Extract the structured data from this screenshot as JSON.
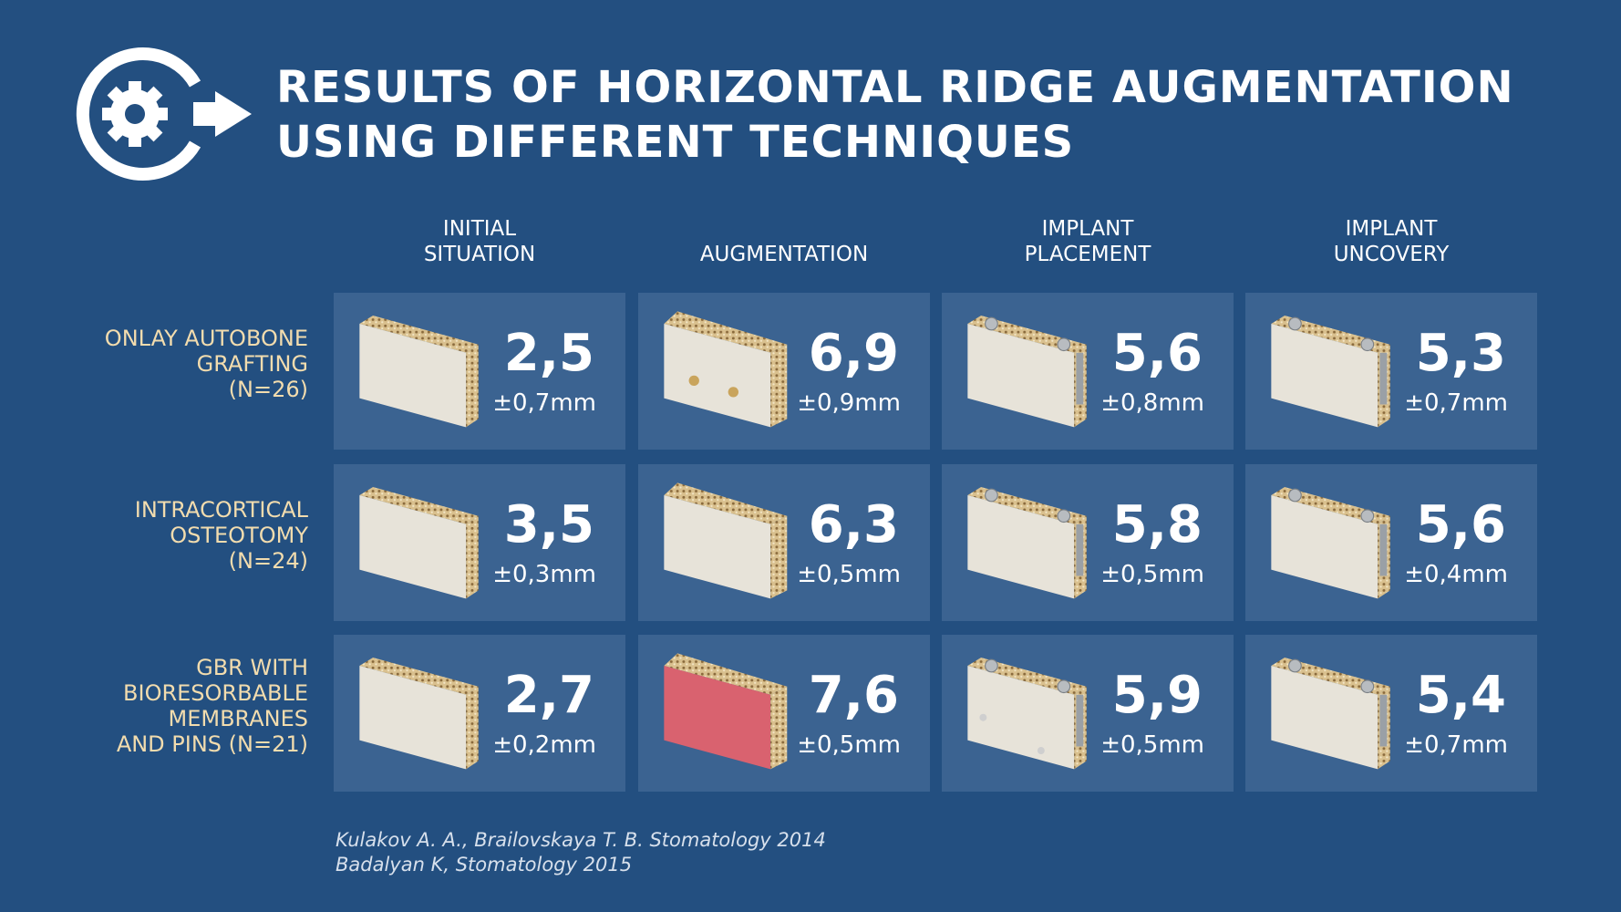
{
  "header": {
    "title": [
      "RESULTS OF HORIZONTAL RIDGE AUGMENTATION",
      "USING DIFFERENT TECHNIQUES"
    ]
  },
  "table": {
    "columns": [
      [
        "INITIAL",
        "SITUATION"
      ],
      [
        "AUGMENTATION"
      ],
      [
        "IMPLANT",
        "PLACEMENT"
      ],
      [
        "IMPLANT",
        "UNCOVERY"
      ]
    ],
    "rows": [
      {
        "label": [
          "ONLAY AUTOBONE",
          "GRAFTING",
          "(N=26)"
        ],
        "cells": [
          {
            "value": "2,5",
            "deviation": "±0,7mm"
          },
          {
            "value": "6,9",
            "deviation": "±0,9mm"
          },
          {
            "value": "5,6",
            "deviation": "±0,8mm"
          },
          {
            "value": "5,3",
            "deviation": "±0,7mm"
          }
        ]
      },
      {
        "label": [
          "INTRACORTICAL",
          "OSTEOTOMY",
          "(N=24)"
        ],
        "cells": [
          {
            "value": "3,5",
            "deviation": "±0,3mm"
          },
          {
            "value": "6,3",
            "deviation": "±0,5mm"
          },
          {
            "value": "5,8",
            "deviation": "±0,5mm"
          },
          {
            "value": "5,6",
            "deviation": "±0,4mm"
          }
        ]
      },
      {
        "label": [
          "GBR WITH",
          "BIORESORBABLE",
          "MEMBRANES",
          "AND PINS (N=21)"
        ],
        "cells": [
          {
            "value": "2,7",
            "deviation": "±0,2mm"
          },
          {
            "value": "7,6",
            "deviation": "±0,5mm"
          },
          {
            "value": "5,9",
            "deviation": "±0,5mm"
          },
          {
            "value": "5,4",
            "deviation": "±0,7mm"
          }
        ]
      }
    ]
  },
  "footer": {
    "references": [
      "Kulakov A. A., Brailovskaya T. B.  Stomatology 2014",
      "Badalyan K,  Stomatology 2015"
    ]
  }
}
